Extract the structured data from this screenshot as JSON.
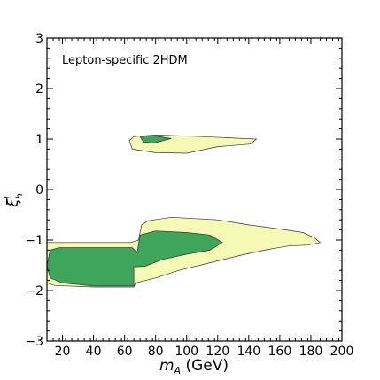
{
  "chart_data": {
    "type": "contour",
    "annotation": "Lepton-specific 2HDM",
    "xlabel_math": "m",
    "xlabel_sub": "A",
    "xlabel_unit": " (GeV)",
    "ylabel_math": "ξ",
    "ylabel_sub": "h",
    "ylabel_sup": "l",
    "xlim": [
      10,
      200
    ],
    "ylim": [
      -3,
      3
    ],
    "x_ticks": [
      20,
      40,
      60,
      80,
      100,
      120,
      140,
      160,
      180,
      200
    ],
    "y_ticks": [
      -3,
      -2,
      -1,
      0,
      1,
      2,
      3
    ],
    "x_minor_step": 4,
    "y_minor_step": 0.2,
    "grid": false,
    "colors": {
      "outer": "#f5f9b4",
      "inner": "#3da65a",
      "edge": "#333333"
    },
    "regions": [
      {
        "level": "outer",
        "points": [
          [
            10,
            -1.05
          ],
          [
            64,
            -1.05
          ],
          [
            69,
            -1.0
          ],
          [
            71,
            -0.7
          ],
          [
            75,
            -0.62
          ],
          [
            90,
            -0.55
          ],
          [
            120,
            -0.6
          ],
          [
            140,
            -0.7
          ],
          [
            160,
            -0.78
          ],
          [
            175,
            -0.85
          ],
          [
            182,
            -0.95
          ],
          [
            186,
            -1.05
          ],
          [
            178,
            -1.1
          ],
          [
            165,
            -1.12
          ],
          [
            150,
            -1.2
          ],
          [
            135,
            -1.3
          ],
          [
            115,
            -1.45
          ],
          [
            95,
            -1.6
          ],
          [
            80,
            -1.75
          ],
          [
            67,
            -1.85
          ],
          [
            66,
            -1.93
          ],
          [
            40,
            -1.93
          ],
          [
            15,
            -1.9
          ],
          [
            10,
            -1.85
          ]
        ]
      },
      {
        "level": "outer",
        "points": [
          [
            66,
            1.05
          ],
          [
            80,
            1.08
          ],
          [
            110,
            1.05
          ],
          [
            145,
            1.0
          ],
          [
            141,
            0.9
          ],
          [
            120,
            0.85
          ],
          [
            100,
            0.72
          ],
          [
            80,
            0.73
          ],
          [
            65,
            0.8
          ],
          [
            63,
            0.97
          ]
        ]
      },
      {
        "level": "inner",
        "points": [
          [
            12,
            -1.2
          ],
          [
            18,
            -1.15
          ],
          [
            65,
            -1.15
          ],
          [
            68,
            -1.25
          ],
          [
            70,
            -0.9
          ],
          [
            80,
            -0.82
          ],
          [
            100,
            -0.85
          ],
          [
            115,
            -0.9
          ],
          [
            123,
            -1.05
          ],
          [
            115,
            -1.2
          ],
          [
            100,
            -1.28
          ],
          [
            85,
            -1.38
          ],
          [
            73,
            -1.52
          ],
          [
            66,
            -1.53
          ],
          [
            66,
            -1.91
          ],
          [
            40,
            -1.91
          ],
          [
            20,
            -1.85
          ],
          [
            12,
            -1.75
          ],
          [
            10,
            -1.5
          ]
        ]
      },
      {
        "level": "inner",
        "points": [
          [
            70,
            1.05
          ],
          [
            78,
            1.07
          ],
          [
            90,
            1.01
          ],
          [
            79,
            0.92
          ],
          [
            72,
            0.94
          ]
        ]
      }
    ]
  }
}
